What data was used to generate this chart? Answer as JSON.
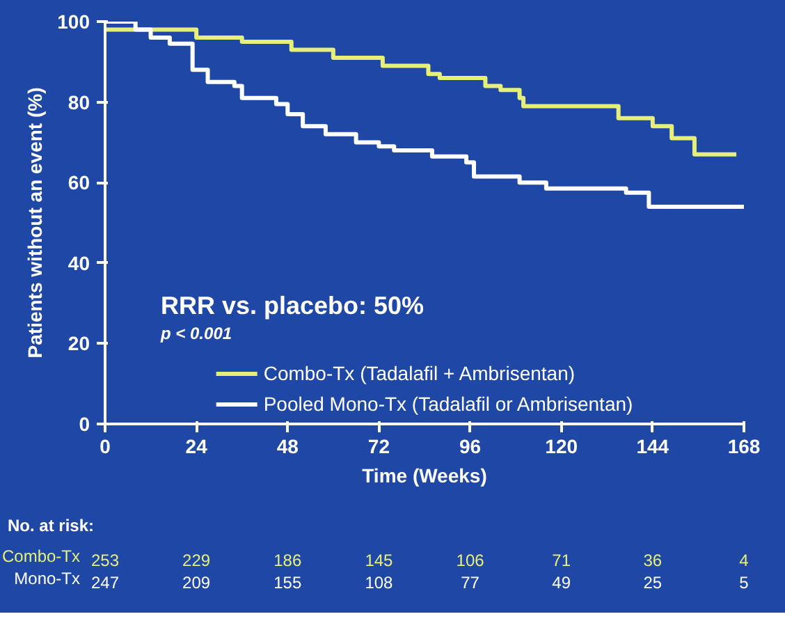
{
  "chart_data": {
    "type": "step",
    "xlabel": "Time (Weeks)",
    "ylabel": "Patients without an event (%)",
    "xlim": [
      0,
      168
    ],
    "ylim": [
      0,
      100
    ],
    "xticks": [
      0,
      24,
      48,
      72,
      96,
      120,
      144,
      168
    ],
    "yticks": [
      0,
      20,
      40,
      60,
      80,
      100
    ],
    "grid": false,
    "legend": "bottom",
    "line_style": "solid",
    "marker": "none",
    "series": [
      {
        "name": "Combo-Tx (Tadalafil + Ambrisentan)",
        "color": "#e6ef7a",
        "x": [
          0,
          24,
          36,
          49,
          60,
          73,
          85,
          88,
          100,
          104,
          109,
          110,
          135,
          144,
          149,
          155,
          166
        ],
        "values": [
          98,
          96,
          95,
          93,
          91,
          89,
          87,
          86,
          84,
          83,
          81,
          79,
          76,
          74,
          71,
          67,
          67
        ]
      },
      {
        "name": "Pooled Mono-Tx (Tadalafil or Ambrisentan)",
        "color": "#ffffff",
        "x": [
          0,
          8,
          12,
          17,
          23,
          27,
          34,
          36,
          45,
          48,
          52,
          58,
          66,
          72,
          76,
          86,
          95,
          97,
          109,
          116,
          137,
          143,
          168
        ],
        "values": [
          100,
          98,
          96,
          94.5,
          88,
          85,
          84,
          81,
          79.5,
          77,
          74,
          72,
          70,
          69,
          68,
          66.5,
          65,
          61.5,
          60,
          58.5,
          57.5,
          54,
          54
        ]
      }
    ],
    "annotations": [
      "RRR vs. placebo: 50%",
      "p < 0.001",
      "No. at risk:",
      "Combo-Tx",
      "253",
      "229",
      "186",
      "145",
      "106",
      "71",
      "36",
      "4",
      "Mono-Tx",
      "247",
      "209",
      "155",
      "108",
      "77",
      "49",
      "25",
      "5"
    ]
  }
}
